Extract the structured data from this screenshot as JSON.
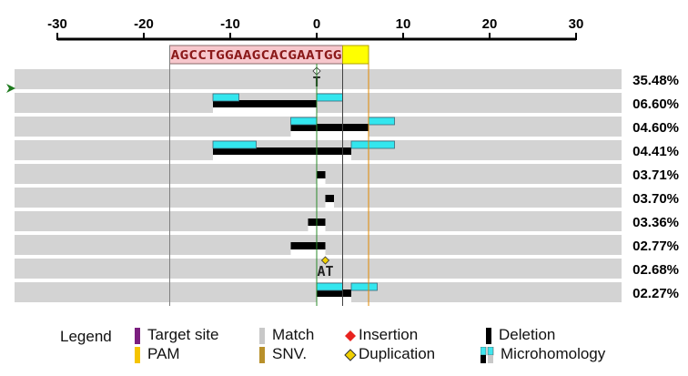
{
  "axis": {
    "ticks": [
      -30,
      -20,
      -10,
      0,
      10,
      20,
      30
    ],
    "min": -30,
    "max": 30
  },
  "target": {
    "sequence": "AGCCTGGAAGCACGAATGG",
    "start": -17,
    "end": 3,
    "pam_start": 3,
    "pam_end": 6,
    "cut_site": 0
  },
  "rows": [
    {
      "pct": "35.48%",
      "marker": "T",
      "marker_type": "insertion_text",
      "marker_pos": 0,
      "deletions": [],
      "microhomology": [],
      "wt_gap": []
    },
    {
      "pct": "06.60%",
      "deletions": [
        [
          -12,
          0
        ]
      ],
      "microhomology": [
        [
          -12,
          -9
        ],
        [
          0,
          3
        ]
      ],
      "wt_gap": [
        [
          -12,
          0
        ]
      ]
    },
    {
      "pct": "04.60%",
      "deletions": [
        [
          -3,
          6
        ]
      ],
      "microhomology": [
        [
          -3,
          0
        ],
        [
          6,
          9
        ]
      ],
      "wt_gap": [
        [
          -3,
          6
        ]
      ]
    },
    {
      "pct": "04.41%",
      "deletions": [
        [
          -12,
          4
        ]
      ],
      "microhomology": [
        [
          -12,
          -7
        ],
        [
          4,
          9
        ]
      ],
      "wt_gap": [
        [
          -12,
          4
        ]
      ]
    },
    {
      "pct": "03.71%",
      "deletions": [
        [
          0,
          1
        ]
      ],
      "microhomology": [],
      "wt_gap": [
        [
          0,
          1
        ]
      ]
    },
    {
      "pct": "03.70%",
      "deletions": [
        [
          1,
          2
        ]
      ],
      "microhomology": [],
      "wt_gap": [
        [
          1,
          2
        ]
      ]
    },
    {
      "pct": "03.36%",
      "deletions": [
        [
          -1,
          1
        ]
      ],
      "microhomology": [],
      "wt_gap": [
        [
          -1,
          1
        ]
      ]
    },
    {
      "pct": "02.77%",
      "deletions": [
        [
          -3,
          1
        ]
      ],
      "microhomology": [],
      "wt_gap": [
        [
          -3,
          1
        ]
      ]
    },
    {
      "pct": "02.68%",
      "marker": "AT",
      "marker_type": "duplication_text",
      "marker_pos": 1,
      "deletions": [],
      "microhomology": [],
      "wt_gap": []
    },
    {
      "pct": "02.27%",
      "deletions": [
        [
          0,
          4
        ]
      ],
      "microhomology": [
        [
          0,
          3
        ],
        [
          4,
          7
        ]
      ],
      "wt_gap": [
        [
          0,
          4
        ]
      ]
    }
  ],
  "legend": {
    "title": "Legend",
    "items": [
      {
        "label": "Target site",
        "color": "#7b1f7f",
        "kind": "bar"
      },
      {
        "label": "PAM",
        "color": "#f5c400",
        "kind": "bar"
      },
      {
        "label": "Match",
        "color": "#c8c8c8",
        "kind": "bar"
      },
      {
        "label": "SNV.",
        "color": "#b8902b",
        "kind": "bar"
      },
      {
        "label": "Insertion",
        "color": "#e8231f",
        "kind": "diamond"
      },
      {
        "label": "Duplication",
        "color": "#f0d000",
        "kind": "diamond"
      },
      {
        "label": "Deletion",
        "color": "#000000",
        "kind": "bar"
      },
      {
        "label": "Microhomology",
        "color": "#3ee6ee",
        "kind": "mh"
      }
    ]
  },
  "colors": {
    "row_bg": "#d3d3d3",
    "target_fill": "#f7c7cc",
    "pam_fill": "#ffff00",
    "microhomology": "#33e6ee",
    "deletion": "#000000",
    "cut_line": "#2a8a2a",
    "pam_line": "#e08a00",
    "guide_line": "#808080",
    "row_pointer": "#1e7a1e"
  }
}
